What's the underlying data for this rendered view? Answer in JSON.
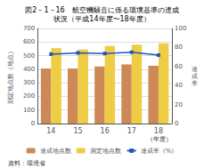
{
  "chart_data": {
    "type": "bar",
    "title": "図2－1－16　航空機騒音に係る環境基準の達成",
    "subtitle": "状況（平成14年度〜18年度）",
    "categories": [
      "14",
      "15",
      "16",
      "17",
      "18"
    ],
    "xlabel": "（年度）",
    "ylabel": "測定地点数（地点）",
    "y2label": "達\n成\n率",
    "series": [
      {
        "name": "達成地点数",
        "color": "#cc8855",
        "values": [
          405,
          405,
          420,
          435,
          425
        ]
      },
      {
        "name": "測定地点数",
        "color": "#eecc44",
        "values": [
          555,
          545,
          570,
          580,
          590
        ]
      },
      {
        "name": "達成率（%）",
        "type": "line",
        "axis": "y2",
        "color": "#2255bb",
        "marker": "square",
        "values": [
          73.0,
          74.3,
          73.7,
          75.0,
          72.0
        ]
      }
    ],
    "ylim": [
      0,
      700
    ],
    "yticks": [
      0,
      100,
      200,
      300,
      400,
      500,
      600,
      700
    ],
    "y2lim": [
      0,
      100
    ],
    "y2ticks": [
      0,
      20,
      40,
      60,
      80,
      100
    ],
    "grid": true,
    "legend": "bottom",
    "annotations": [
      "資料：環境省"
    ]
  }
}
